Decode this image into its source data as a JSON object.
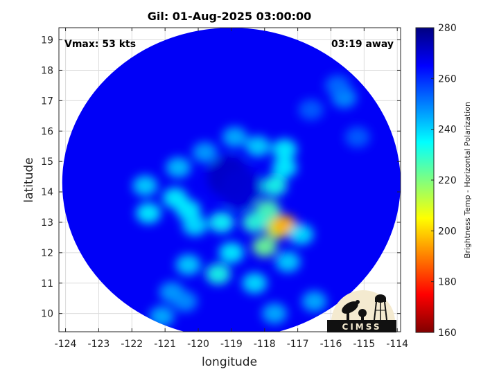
{
  "chart_data": {
    "type": "heatmap",
    "title": "Gil: 01-Aug-2025 03:00:00",
    "xlabel": "longitude",
    "ylabel": "latitude",
    "xlim": [
      -124.2,
      -113.9
    ],
    "ylim": [
      9.4,
      19.4
    ],
    "x_ticks": [
      -124,
      -123,
      -122,
      -121,
      -120,
      -119,
      -118,
      -117,
      -116,
      -115,
      -114
    ],
    "y_ticks": [
      10,
      11,
      12,
      13,
      14,
      15,
      16,
      17,
      18,
      19
    ],
    "x_tick_labels": [
      "-124",
      "-123",
      "-122",
      "-121",
      "-120",
      "-119",
      "-118",
      "-117",
      "-116",
      "-115",
      "-114"
    ],
    "y_tick_labels": [
      "10",
      "11",
      "12",
      "13",
      "14",
      "15",
      "16",
      "17",
      "18",
      "19"
    ],
    "grid": true,
    "annotations": {
      "left": "Vmax: 53 kts",
      "right": "03:19 away"
    },
    "colorbar": {
      "label": "Brightness Temp - Horizontal Polarization",
      "range": [
        160,
        280
      ],
      "ticks": [
        160,
        180,
        200,
        220,
        240,
        260,
        280
      ],
      "tick_labels": [
        "160",
        "180",
        "200",
        "220",
        "240",
        "260",
        "280"
      ],
      "colormap": "jet"
    },
    "swath": {
      "center_lon": -119.0,
      "center_lat": 14.3,
      "radius_deg": 5.1,
      "background_value": 266
    },
    "features": [
      {
        "lon": -119.1,
        "lat": 14.5,
        "value": 272
      },
      {
        "lon": -118.7,
        "lat": 14.1,
        "value": 270
      },
      {
        "lon": -117.6,
        "lat": 12.8,
        "value": 212
      },
      {
        "lon": -117.4,
        "lat": 12.9,
        "value": 195
      },
      {
        "lon": -118.0,
        "lat": 12.2,
        "value": 222
      },
      {
        "lon": -117.9,
        "lat": 13.4,
        "value": 226
      },
      {
        "lon": -117.7,
        "lat": 14.2,
        "value": 232
      },
      {
        "lon": -117.4,
        "lat": 14.8,
        "value": 236
      },
      {
        "lon": -118.2,
        "lat": 15.5,
        "value": 240
      },
      {
        "lon": -117.4,
        "lat": 15.4,
        "value": 236
      },
      {
        "lon": -118.9,
        "lat": 15.8,
        "value": 244
      },
      {
        "lon": -119.8,
        "lat": 15.3,
        "value": 246
      },
      {
        "lon": -120.6,
        "lat": 14.8,
        "value": 242
      },
      {
        "lon": -120.7,
        "lat": 13.8,
        "value": 236
      },
      {
        "lon": -120.3,
        "lat": 13.4,
        "value": 236
      },
      {
        "lon": -121.6,
        "lat": 14.2,
        "value": 240
      },
      {
        "lon": -121.5,
        "lat": 13.3,
        "value": 236
      },
      {
        "lon": -120.1,
        "lat": 12.9,
        "value": 238
      },
      {
        "lon": -119.3,
        "lat": 13.0,
        "value": 234
      },
      {
        "lon": -118.3,
        "lat": 13.0,
        "value": 230
      },
      {
        "lon": -119.0,
        "lat": 12.0,
        "value": 236
      },
      {
        "lon": -119.4,
        "lat": 11.3,
        "value": 232
      },
      {
        "lon": -118.3,
        "lat": 11.0,
        "value": 238
      },
      {
        "lon": -117.3,
        "lat": 11.7,
        "value": 240
      },
      {
        "lon": -116.9,
        "lat": 12.6,
        "value": 238
      },
      {
        "lon": -120.3,
        "lat": 11.6,
        "value": 240
      },
      {
        "lon": -120.8,
        "lat": 10.7,
        "value": 246
      },
      {
        "lon": -121.1,
        "lat": 9.9,
        "value": 244
      },
      {
        "lon": -120.4,
        "lat": 10.4,
        "value": 248
      },
      {
        "lon": -115.6,
        "lat": 17.1,
        "value": 248
      },
      {
        "lon": -115.8,
        "lat": 17.5,
        "value": 252
      },
      {
        "lon": -116.6,
        "lat": 16.7,
        "value": 254
      },
      {
        "lon": -115.2,
        "lat": 15.8,
        "value": 254
      },
      {
        "lon": -117.7,
        "lat": 10.0,
        "value": 244
      },
      {
        "lon": -116.5,
        "lat": 10.4,
        "value": 244
      }
    ]
  },
  "logo": {
    "text": "CIMSS",
    "bg_color": "#f4ead0",
    "fg_color": "#111111"
  }
}
